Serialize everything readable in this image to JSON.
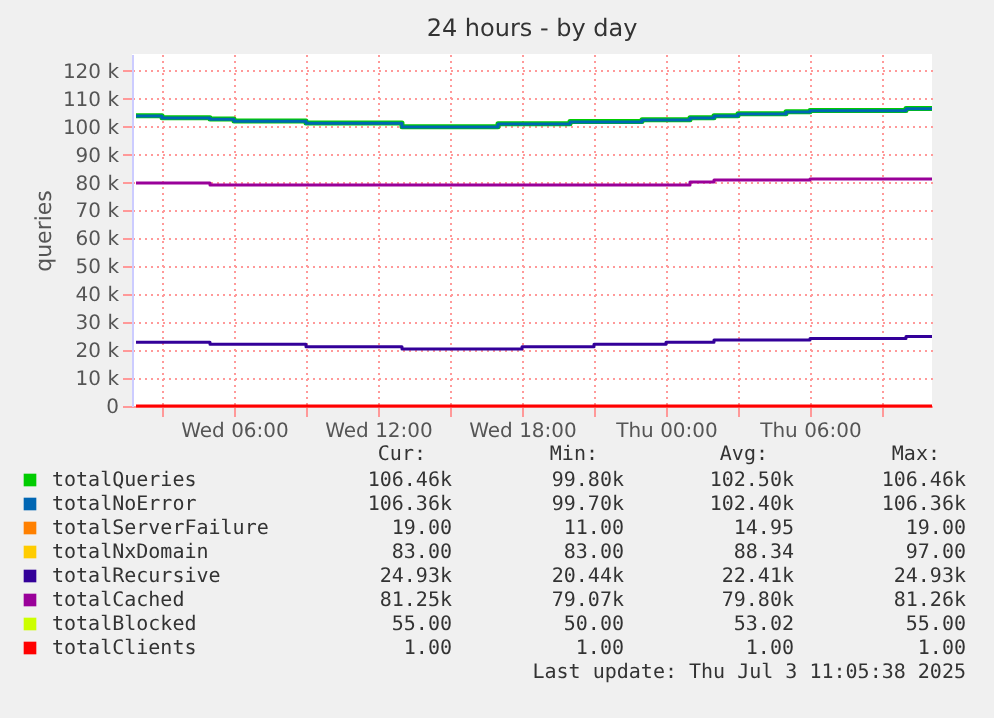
{
  "chart_data": {
    "type": "step",
    "title": "24 hours - by day",
    "ylabel": "queries",
    "xlim": [
      "2025-07-02T01:45",
      "2025-07-03T11:05"
    ],
    "xticks": [
      {
        "value": "2025-07-02T03:00",
        "label": null
      },
      {
        "value": "2025-07-02T06:00",
        "label": "Wed 06:00"
      },
      {
        "value": "2025-07-02T09:00",
        "label": null
      },
      {
        "value": "2025-07-02T12:00",
        "label": "Wed 12:00"
      },
      {
        "value": "2025-07-02T15:00",
        "label": null
      },
      {
        "value": "2025-07-02T18:00",
        "label": "Wed 18:00"
      },
      {
        "value": "2025-07-02T21:00",
        "label": null
      },
      {
        "value": "2025-07-03T00:00",
        "label": "Thu 00:00"
      },
      {
        "value": "2025-07-03T03:00",
        "label": null
      },
      {
        "value": "2025-07-03T06:00",
        "label": "Thu 06:00"
      },
      {
        "value": "2025-07-03T09:00",
        "label": null
      }
    ],
    "ylim": [
      0,
      126000
    ],
    "yticks": [
      0,
      {
        "value": 10000,
        "label": "10 k"
      },
      {
        "value": 20000,
        "label": "20 k"
      },
      {
        "value": 30000,
        "label": "30 k"
      },
      {
        "value": 40000,
        "label": "40 k"
      },
      {
        "value": 50000,
        "label": "50 k"
      },
      {
        "value": 60000,
        "label": "60 k"
      },
      {
        "value": 70000,
        "label": "70 k"
      },
      {
        "value": 80000,
        "label": "80 k"
      },
      {
        "value": 90000,
        "label": "90 k"
      },
      {
        "value": 100000,
        "label": "100 k"
      },
      {
        "value": 110000,
        "label": "110 k"
      },
      {
        "value": 120000,
        "label": "120 k"
      }
    ],
    "grid": true,
    "legend": "bottom",
    "series": [
      {
        "name": "totalQueries",
        "color": "#00cc00",
        "x": [
          "2025-07-02T01:55",
          "2025-07-02T03:00",
          "2025-07-02T05:00",
          "2025-07-02T06:00",
          "2025-07-02T09:00",
          "2025-07-02T13:00",
          "2025-07-02T17:00",
          "2025-07-02T20:00",
          "2025-07-02T23:00",
          "2025-07-03T01:00",
          "2025-07-03T02:00",
          "2025-07-03T03:00",
          "2025-07-03T05:00",
          "2025-07-03T06:00",
          "2025-07-03T10:00",
          "2025-07-03T11:05"
        ],
        "values": [
          103900,
          103200,
          102700,
          102000,
          101300,
          100000,
          101000,
          101800,
          102500,
          103200,
          103900,
          104600,
          105300,
          105800,
          106500,
          106500
        ]
      },
      {
        "name": "totalNoError",
        "color": "#0066b3",
        "x": [
          "2025-07-02T01:55",
          "2025-07-02T03:00",
          "2025-07-02T05:00",
          "2025-07-02T06:00",
          "2025-07-02T09:00",
          "2025-07-02T13:00",
          "2025-07-02T17:00",
          "2025-07-02T20:00",
          "2025-07-02T23:00",
          "2025-07-03T01:00",
          "2025-07-03T02:00",
          "2025-07-03T03:00",
          "2025-07-03T05:00",
          "2025-07-03T06:00",
          "2025-07-03T10:00",
          "2025-07-03T11:05"
        ],
        "values": [
          103800,
          103100,
          102600,
          101900,
          101200,
          99900,
          100900,
          101700,
          102400,
          103100,
          103800,
          104500,
          105200,
          105700,
          106400,
          106400
        ]
      },
      {
        "name": "totalServerFailure",
        "color": "#ff8000"
      },
      {
        "name": "totalNxDomain",
        "color": "#ffcc00"
      },
      {
        "name": "totalRecursive",
        "color": "#330099",
        "x": [
          "2025-07-02T01:55",
          "2025-07-02T05:00",
          "2025-07-02T09:00",
          "2025-07-02T13:00",
          "2025-07-02T18:00",
          "2025-07-02T21:00",
          "2025-07-03T00:00",
          "2025-07-03T02:00",
          "2025-07-03T06:00",
          "2025-07-03T10:00",
          "2025-07-03T11:05"
        ],
        "values": [
          22800,
          22100,
          21200,
          20400,
          21200,
          22100,
          22800,
          23600,
          24200,
          24900,
          24900
        ]
      },
      {
        "name": "totalCached",
        "color": "#990099",
        "x": [
          "2025-07-02T01:55",
          "2025-07-02T05:00",
          "2025-07-03T01:00",
          "2025-07-03T02:00",
          "2025-07-03T06:00",
          "2025-07-03T11:05"
        ],
        "values": [
          79800,
          79100,
          80200,
          80900,
          81300,
          81300
        ]
      },
      {
        "name": "totalBlocked",
        "color": "#ccff00"
      },
      {
        "name": "totalClients",
        "color": "#ff0000",
        "x": [
          "2025-07-02T01:55",
          "2025-07-03T11:05"
        ],
        "values": [
          0,
          0
        ]
      }
    ],
    "annotations": [
      "Cur:",
      "Min:",
      "Avg:",
      "Max:",
      "106.46k",
      "99.80k",
      "102.50k",
      "106.46k",
      "106.36k",
      "99.70k",
      "102.40k",
      "106.36k",
      "19.00",
      "11.00",
      "14.95",
      "19.00",
      "83.00",
      "83.00",
      "88.34",
      "97.00",
      "24.93k",
      "20.44k",
      "22.41k",
      "24.93k",
      "81.25k",
      "79.07k",
      "79.80k",
      "81.26k",
      "55.00",
      "50.00",
      "53.02",
      "55.00",
      "1.00",
      "1.00",
      "1.00",
      "1.00",
      "Last update: Thu Jul  3 11:05:38 2025"
    ]
  }
}
